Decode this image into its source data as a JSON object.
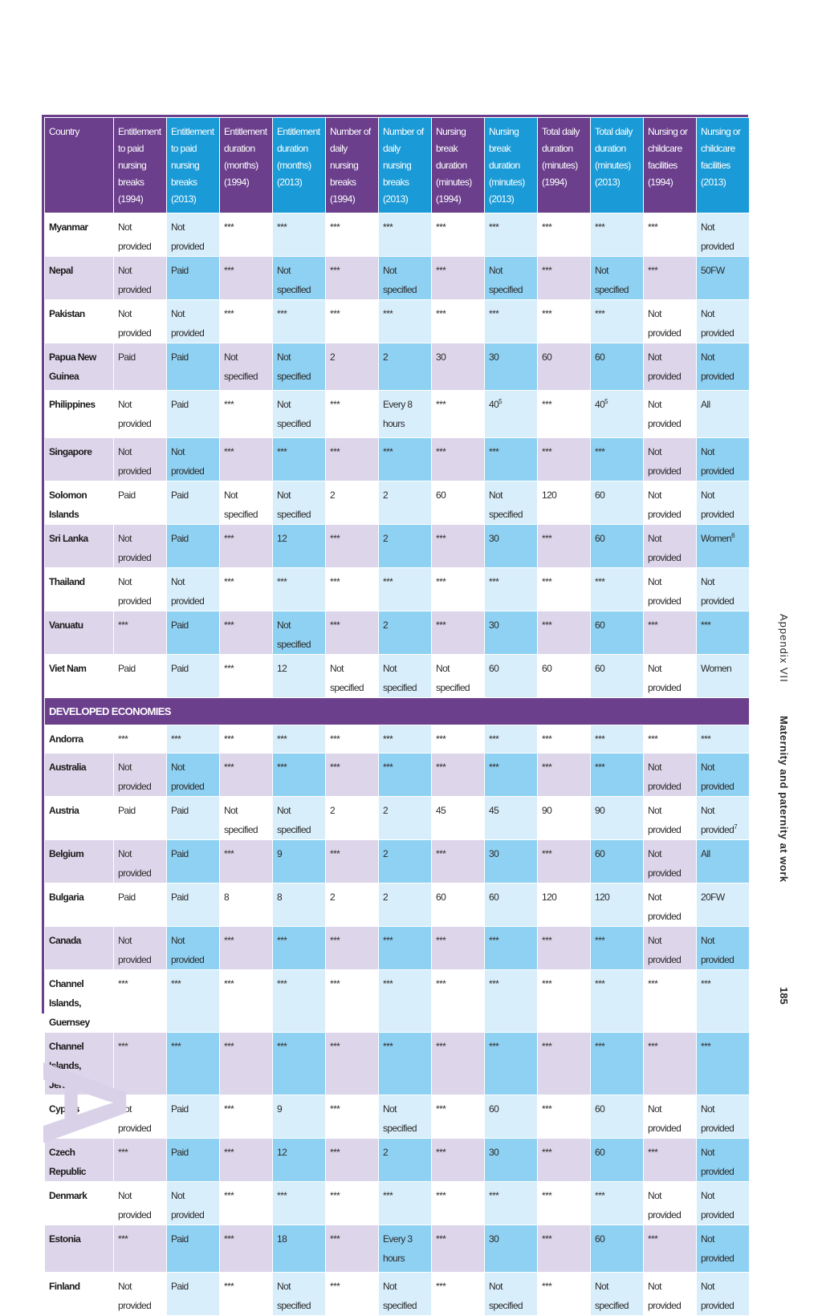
{
  "table": {
    "headers": [
      "Country",
      "Entitlement to paid nursing breaks (1994)",
      "Entitlement to paid nursing breaks (2013)",
      "Entitlement duration (months) (1994)",
      "Entitlement duration (months) (2013)",
      "Number of daily nursing breaks (1994)",
      "Number of daily nursing breaks (2013)",
      "Nursing break duration (minutes) (1994)",
      "Nursing break duration (minutes) (2013)",
      "Total daily duration (minutes) (1994)",
      "Total daily duration (minutes) (2013)",
      "Nursing or childcare facilities (1994)",
      "Nursing or childcare facilities (2013)"
    ],
    "rows_top": [
      [
        "Myanmar",
        "Not provided",
        "Not provided",
        "***",
        "***",
        "***",
        "***",
        "***",
        "***",
        "***",
        "***",
        "***",
        "Not provided"
      ],
      [
        "Nepal",
        "Not provided",
        "Paid",
        "***",
        "Not specified",
        "***",
        "Not specified",
        "***",
        "Not specified",
        "***",
        "Not specified",
        "***",
        "50FW"
      ],
      [
        "Pakistan",
        "Not provided",
        "Not provided",
        "***",
        "***",
        "***",
        "***",
        "***",
        "***",
        "***",
        "***",
        "Not provided",
        "Not provided"
      ],
      [
        "Papua New Guinea",
        "Paid",
        "Paid",
        "Not specified",
        "Not specified",
        "2",
        "2",
        "30",
        "30",
        "60",
        "60",
        "Not provided",
        "Not provided"
      ],
      [
        "Philippines",
        "Not provided",
        "Paid",
        "***",
        "Not specified",
        "***",
        "Every 8 hours",
        "***",
        "40",
        "***",
        "40",
        "Not provided",
        "All"
      ],
      [
        "Singapore",
        "Not provided",
        "Not provided",
        "***",
        "***",
        "***",
        "***",
        "***",
        "***",
        "***",
        "***",
        "Not provided",
        "Not provided"
      ],
      [
        "Solomon Islands",
        "Paid",
        "Paid",
        "Not specified",
        "Not specified",
        "2",
        "2",
        "60",
        "Not specified",
        "120",
        "60",
        "Not provided",
        "Not provided"
      ],
      [
        "Sri Lanka",
        "Not provided",
        "Paid",
        "***",
        "12",
        "***",
        "2",
        "***",
        "30",
        "***",
        "60",
        "Not provided",
        "Women"
      ],
      [
        "Thailand",
        "Not provided",
        "Not provided",
        "***",
        "***",
        "***",
        "***",
        "***",
        "***",
        "***",
        "***",
        "Not provided",
        "Not provided"
      ],
      [
        "Vanuatu",
        "***",
        "Paid",
        "***",
        "Not specified",
        "***",
        "2",
        "***",
        "30",
        "***",
        "60",
        "***",
        "***"
      ],
      [
        "Viet Nam",
        "Paid",
        "Paid",
        "***",
        "12",
        "Not specified",
        "Not specified",
        "Not specified",
        "60",
        "60",
        "60",
        "Not provided",
        "Women"
      ]
    ],
    "section_label": "DEVELOPED ECONOMIES",
    "rows_bottom": [
      [
        "Andorra",
        "***",
        "***",
        "***",
        "***",
        "***",
        "***",
        "***",
        "***",
        "***",
        "***",
        "***",
        "***"
      ],
      [
        "Australia",
        "Not provided",
        "Not provided",
        "***",
        "***",
        "***",
        "***",
        "***",
        "***",
        "***",
        "***",
        "Not provided",
        "Not provided"
      ],
      [
        "Austria",
        "Paid",
        "Paid",
        "Not specified",
        "Not specified",
        "2",
        "2",
        "45",
        "45",
        "90",
        "90",
        "Not provided",
        "Not provided"
      ],
      [
        "Belgium",
        "Not provided",
        "Paid",
        "***",
        "9",
        "***",
        "2",
        "***",
        "30",
        "***",
        "60",
        "Not provided",
        "All"
      ],
      [
        "Bulgaria",
        "Paid",
        "Paid",
        "8",
        "8",
        "2",
        "2",
        "60",
        "60",
        "120",
        "120",
        "Not provided",
        "20FW"
      ],
      [
        "Canada",
        "Not provided",
        "Not provided",
        "***",
        "***",
        "***",
        "***",
        "***",
        "***",
        "***",
        "***",
        "Not provided",
        "Not provided"
      ],
      [
        "Channel Islands, Guernsey",
        "***",
        "***",
        "***",
        "***",
        "***",
        "***",
        "***",
        "***",
        "***",
        "***",
        "***",
        "***"
      ],
      [
        "Channel Islands, Jersey",
        "***",
        "***",
        "***",
        "***",
        "***",
        "***",
        "***",
        "***",
        "***",
        "***",
        "***",
        "***"
      ],
      [
        "Cyprus",
        "Not provided",
        "Paid",
        "***",
        "9",
        "***",
        "Not specified",
        "***",
        "60",
        "***",
        "60",
        "Not provided",
        "Not provided"
      ],
      [
        "Czech Republic",
        "***",
        "Paid",
        "***",
        "12",
        "***",
        "2",
        "***",
        "30",
        "***",
        "60",
        "***",
        "Not provided"
      ],
      [
        "Denmark",
        "Not provided",
        "Not provided",
        "***",
        "***",
        "***",
        "***",
        "***",
        "***",
        "***",
        "***",
        "Not provided",
        "Not provided"
      ],
      [
        "Estonia",
        "***",
        "Paid",
        "***",
        "18",
        "***",
        "Every 3 hours",
        "***",
        "30",
        "***",
        "60",
        "***",
        "Not provided"
      ],
      [
        "Finland",
        "Not provided",
        "Paid",
        "***",
        "Not specified",
        "***",
        "Not specified",
        "***",
        "Not specified",
        "***",
        "Not specified",
        "Not provided",
        "Not provided"
      ]
    ],
    "footnotes": {
      "philippines_40": "5",
      "sri_lanka_women": "6",
      "austria_not_provided": "7"
    }
  },
  "side": {
    "appendix": "Appendix VII",
    "title": "Maternity and paternity at work",
    "page_number": "185"
  },
  "section_letter": "A",
  "colors": {
    "purple": "#6b3f8c",
    "blue": "#1a9bd7",
    "light_purple": "#ddd5ea",
    "light_blue": "#d8eefb",
    "mid_blue": "#8fd1f2",
    "letter": "#d9d1e8"
  }
}
